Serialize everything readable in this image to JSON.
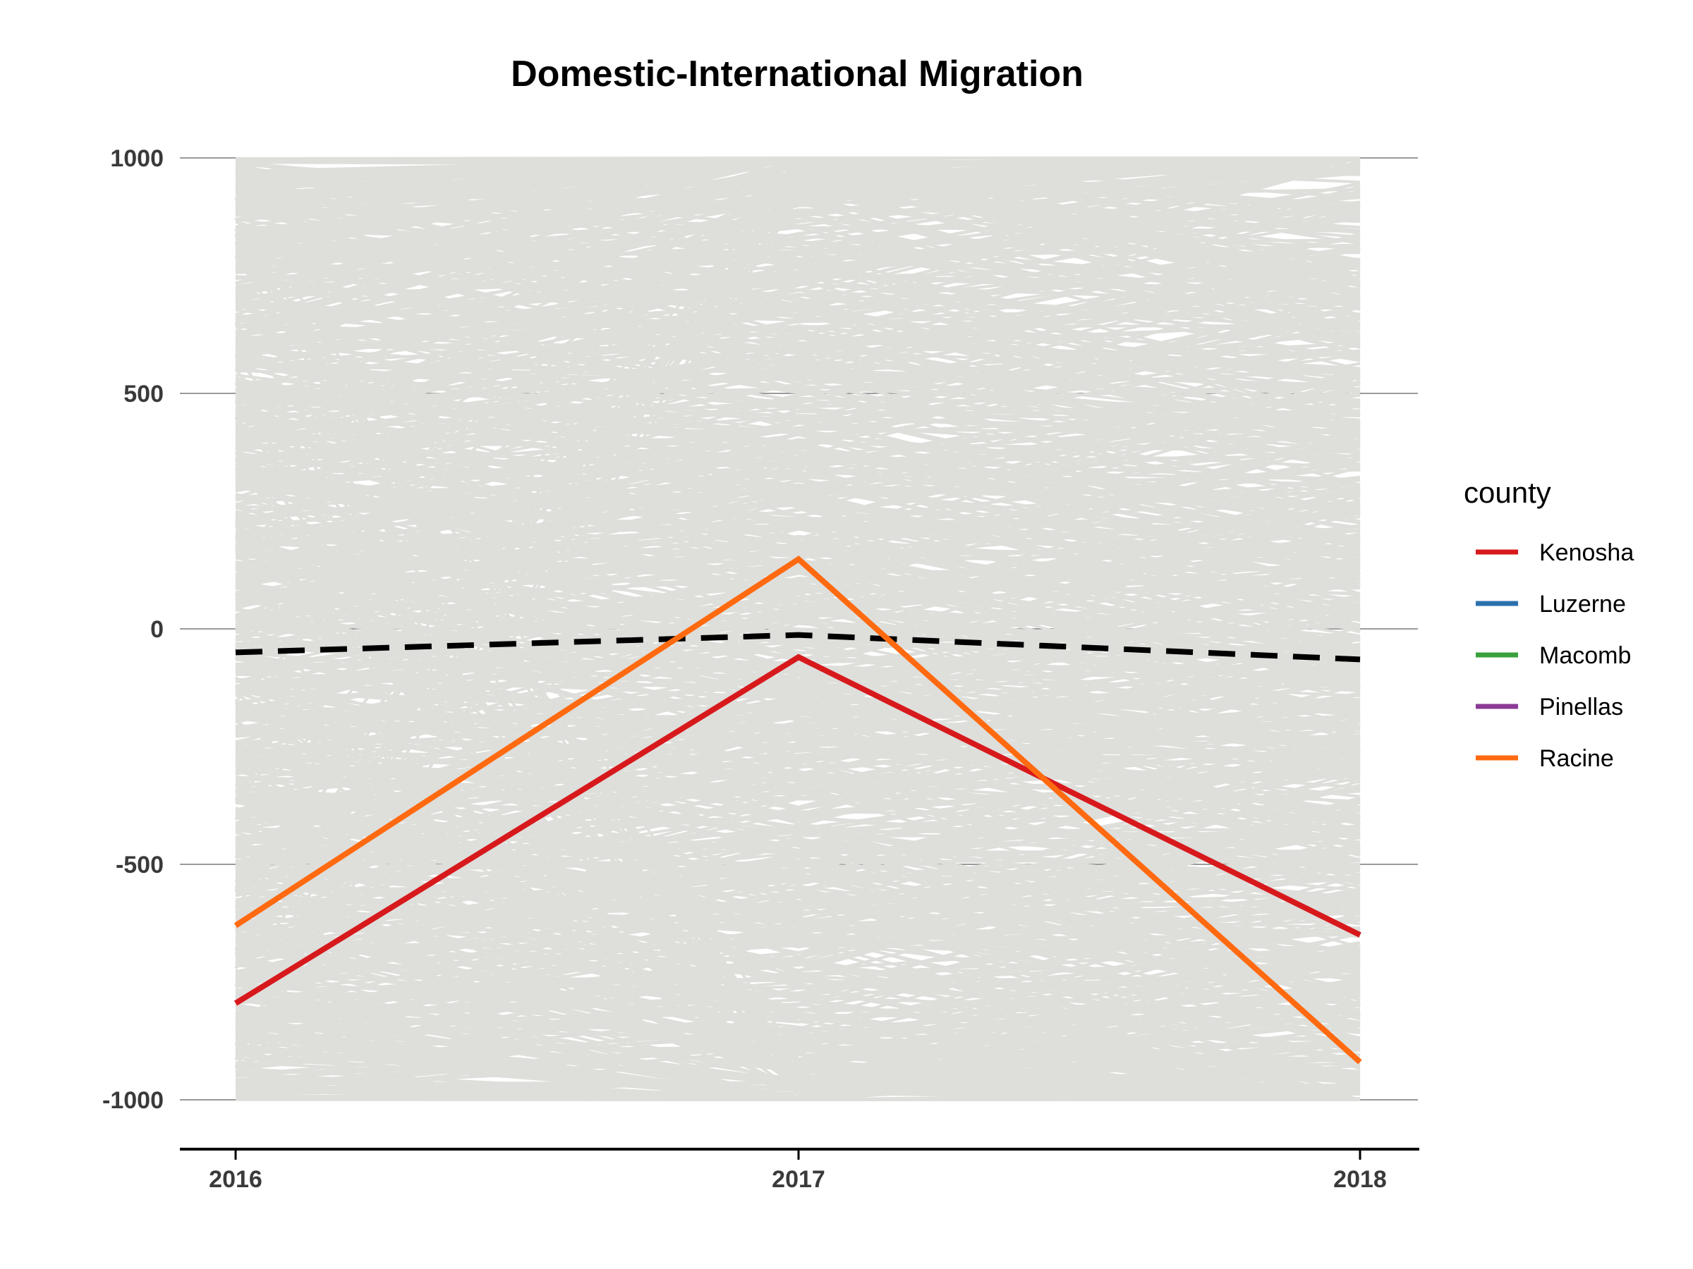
{
  "chart_data": {
    "type": "line",
    "title": "Domestic-International Migration",
    "xlabel": "",
    "ylabel": "",
    "x": [
      2016,
      2017,
      2018
    ],
    "x_tick_labels": [
      "2016",
      "2017",
      "2018"
    ],
    "y_ticks": [
      1000,
      500,
      0,
      -500,
      -1000
    ],
    "y_tick_labels": [
      "1000",
      "500",
      "0",
      "-500",
      "-1000"
    ],
    "ylim": [
      -1100,
      1000
    ],
    "grid": "horizontal major lines only",
    "legend": {
      "title": "county",
      "placement": "right",
      "entries": [
        "Kenosha",
        "Luzerne",
        "Macomb",
        "Pinellas",
        "Racine"
      ]
    },
    "background_lines": {
      "description_color": "#dededb",
      "range": [
        -1000,
        1000
      ]
    },
    "mean_line": {
      "style": "dashed",
      "color": "#000000",
      "values": [
        -50,
        -13,
        -65
      ]
    },
    "series": [
      {
        "name": "Kenosha",
        "color": "#d7191c",
        "values": [
          -795,
          -60,
          -650
        ]
      },
      {
        "name": "Luzerne",
        "color": "#2c6fad",
        "values": [
          null,
          null,
          null
        ]
      },
      {
        "name": "Macomb",
        "color": "#3aa13a",
        "values": [
          null,
          null,
          null
        ]
      },
      {
        "name": "Pinellas",
        "color": "#8b3a96",
        "values": [
          null,
          null,
          null
        ]
      },
      {
        "name": "Racine",
        "color": "#ff6a10",
        "values": [
          -630,
          148,
          -920
        ]
      }
    ]
  }
}
